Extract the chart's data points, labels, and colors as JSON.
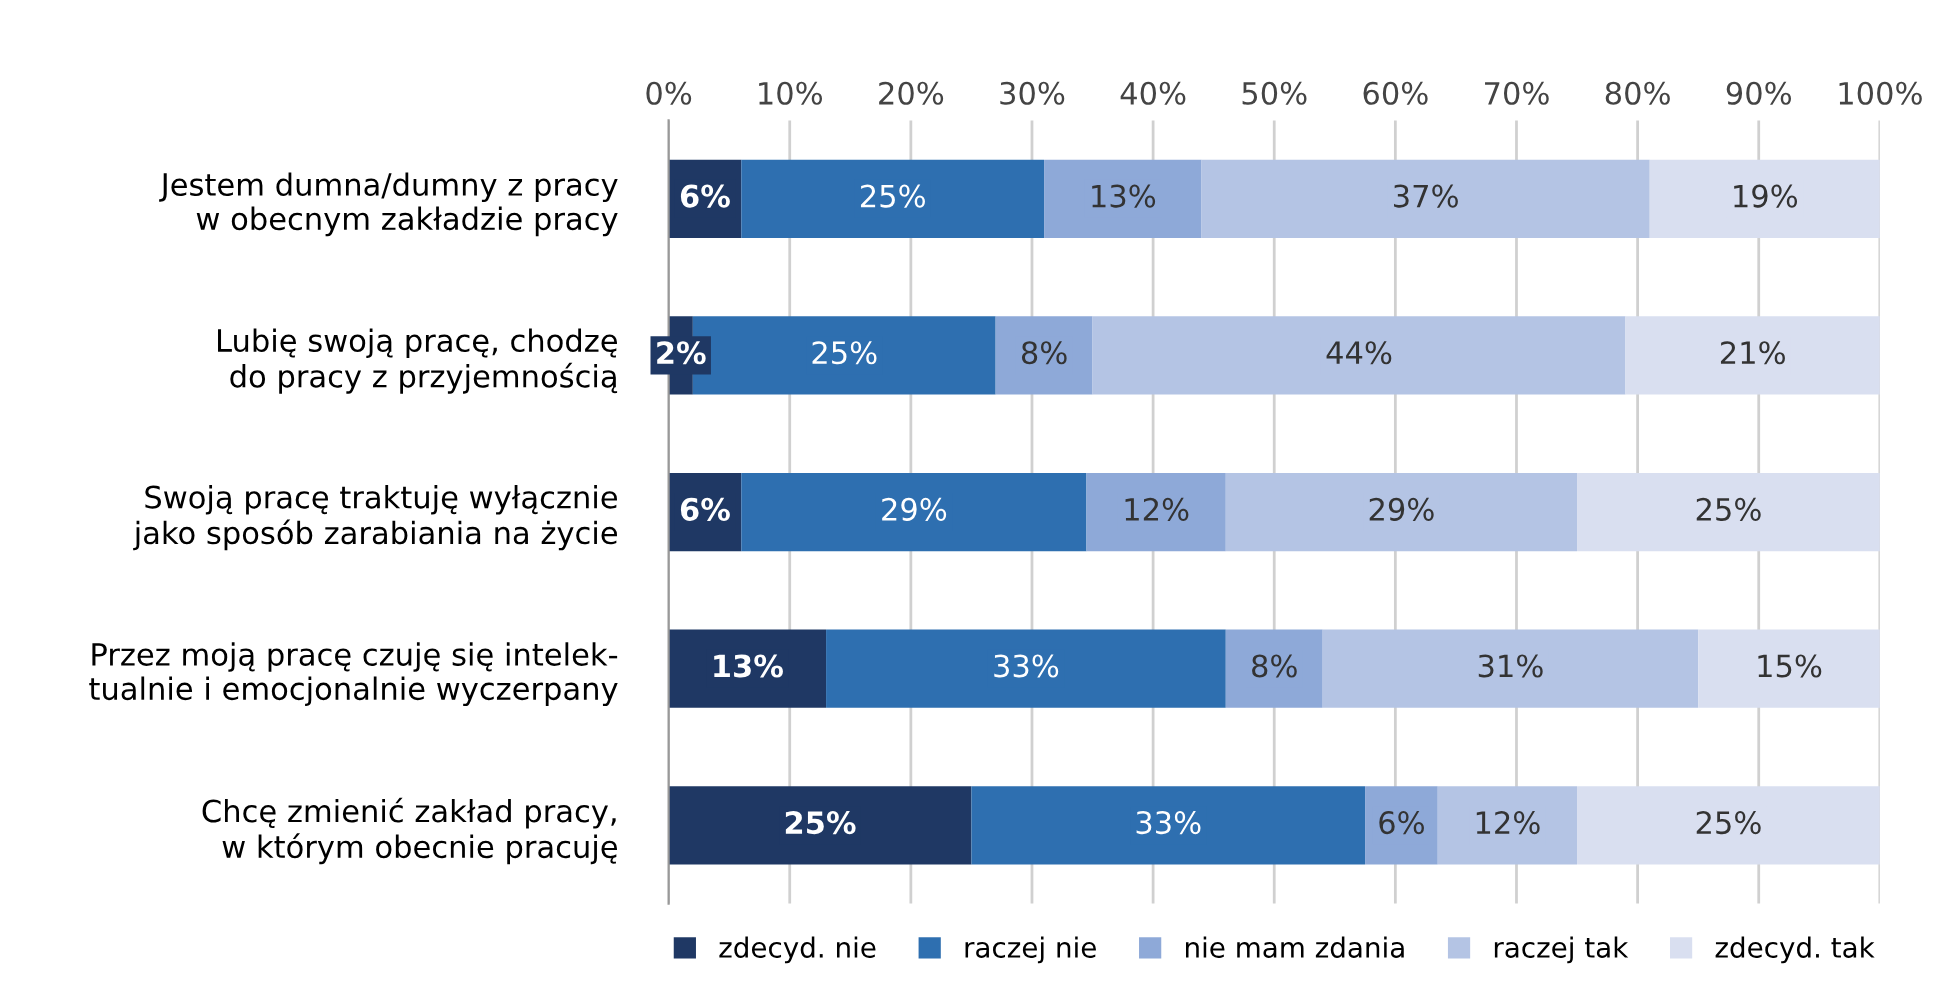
{
  "chart_data": {
    "type": "bar",
    "orientation": "horizontal",
    "stacked": true,
    "categories": [
      "Jestem dumna/dumny z pracy\nw obecnym zakładzie pracy",
      "Lubię swoją pracę, chodzę\ndo pracy z przyjemnością",
      "Swoją pracę traktuję wyłącznie\njako sposób zarabiania na życie",
      "Przez moją pracę czuję się intelek-\ntualnie i emocjonalnie wyczerpany",
      "Chcę zmienić zakład pracy,\nw którym obecnie pracuję"
    ],
    "series": [
      {
        "name": "zdecyd. nie",
        "color": "#1f3864",
        "values": [
          6,
          2,
          6,
          13,
          25
        ],
        "value_labels": [
          "6%",
          "2%",
          "6%",
          "13%",
          "25%"
        ]
      },
      {
        "name": "raczej nie",
        "color": "#2e6fb0",
        "values": [
          25,
          25,
          28.5,
          33,
          32.5
        ],
        "value_labels": [
          "25%",
          "25%",
          "29%",
          "33%",
          "33%"
        ]
      },
      {
        "name": "nie mam zdania",
        "color": "#8ea9d8",
        "values": [
          13,
          8,
          11.5,
          8,
          6
        ],
        "value_labels": [
          "13%",
          "8%",
          "12%",
          "8%",
          "6%"
        ]
      },
      {
        "name": "raczej tak",
        "color": "#b4c4e4",
        "values": [
          37,
          44,
          29,
          31,
          11.5
        ],
        "value_labels": [
          "37%",
          "44%",
          "29%",
          "31%",
          "12%"
        ]
      },
      {
        "name": "zdecyd. tak",
        "color": "#d9dff0",
        "values": [
          19,
          21,
          25,
          15,
          25
        ],
        "value_labels": [
          "19%",
          "21%",
          "25%",
          "15%",
          "25%"
        ]
      }
    ],
    "xlim": [
      0,
      100
    ],
    "xticks": [
      {
        "value": 0,
        "label": "0%"
      },
      {
        "value": 10,
        "label": "10%"
      },
      {
        "value": 20,
        "label": "20%"
      },
      {
        "value": 30,
        "label": "30%"
      },
      {
        "value": 40,
        "label": "40%"
      },
      {
        "value": 50,
        "label": "50%"
      },
      {
        "value": 60,
        "label": "60%"
      },
      {
        "value": 70,
        "label": "70%"
      },
      {
        "value": 80,
        "label": "80%"
      },
      {
        "value": 90,
        "label": "90%"
      },
      {
        "value": 100,
        "label": "100%"
      }
    ],
    "grid": "x",
    "legend": "bottom"
  }
}
